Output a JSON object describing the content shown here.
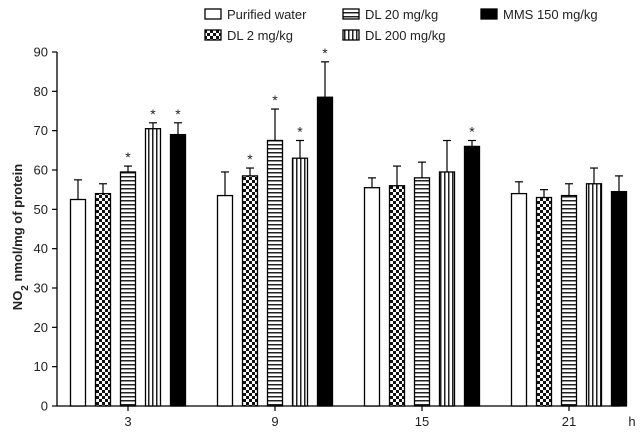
{
  "chart_data": {
    "type": "bar",
    "ylabel_main": "NO",
    "ylabel_sub": "2",
    "ylabel_rest": " nmol/mg of protein",
    "xunit": "h",
    "categories": [
      "3",
      "9",
      "15",
      "21"
    ],
    "ylim": [
      0,
      90
    ],
    "yticks": [
      0,
      10,
      20,
      30,
      40,
      50,
      60,
      70,
      80,
      90
    ],
    "significance_marker": "*",
    "series": [
      {
        "name": "Purified water",
        "pattern": "white",
        "values": [
          52.5,
          53.5,
          55.5,
          54
        ],
        "errors": [
          5,
          6,
          2.5,
          3
        ],
        "significant": [
          false,
          false,
          false,
          false
        ]
      },
      {
        "name": "DL 2 mg/kg",
        "pattern": "checker",
        "values": [
          54,
          58.5,
          56,
          53
        ],
        "errors": [
          2.5,
          2,
          5,
          2
        ],
        "significant": [
          false,
          true,
          false,
          false
        ]
      },
      {
        "name": "DL 20 mg/kg",
        "pattern": "horizontal",
        "values": [
          59.5,
          67.5,
          58,
          53.5
        ],
        "errors": [
          1.5,
          8,
          4,
          3
        ],
        "significant": [
          true,
          true,
          false,
          false
        ]
      },
      {
        "name": "DL 200 mg/kg",
        "pattern": "vertical",
        "values": [
          70.5,
          63,
          59.5,
          56.5
        ],
        "errors": [
          1.5,
          4.5,
          8,
          4
        ],
        "significant": [
          true,
          true,
          false,
          false
        ]
      },
      {
        "name": "MMS 150 mg/kg",
        "pattern": "black",
        "values": [
          69,
          78.5,
          66,
          54.5
        ],
        "errors": [
          3,
          9,
          1.5,
          4
        ],
        "significant": [
          true,
          true,
          true,
          false
        ]
      }
    ],
    "legend_position": "top-right"
  }
}
